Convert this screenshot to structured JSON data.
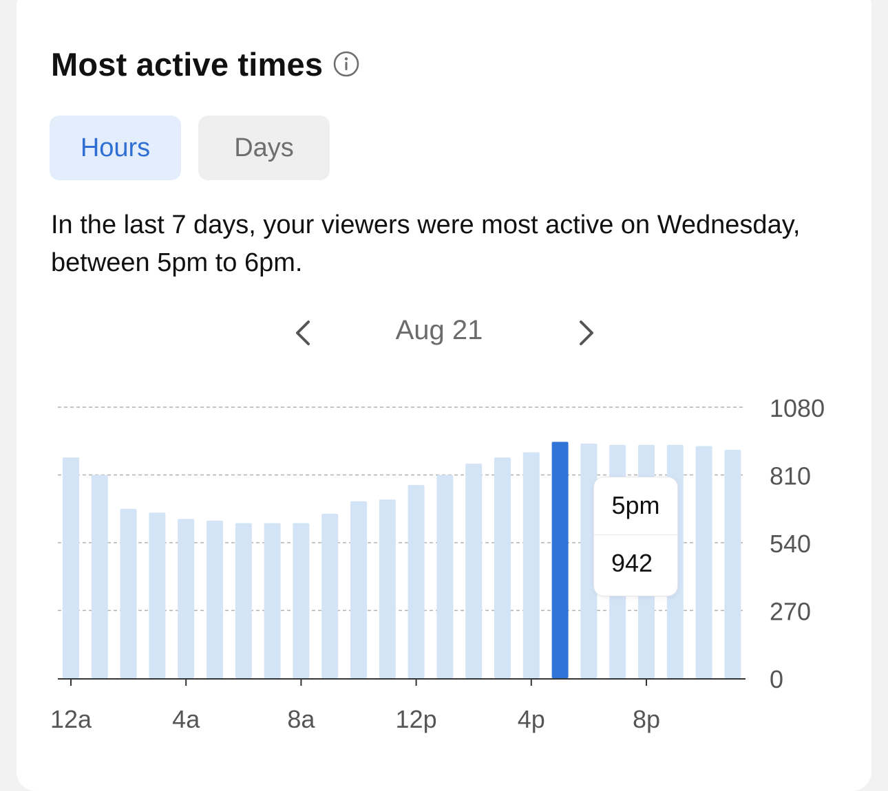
{
  "header": {
    "title": "Most active times",
    "info_icon": "info-icon"
  },
  "tabs": [
    {
      "label": "Hours",
      "selected": true
    },
    {
      "label": "Days",
      "selected": false
    }
  ],
  "description": "In the last 7 days, your viewers were most active on Wednesday, between 5pm to 6pm.",
  "date_nav": {
    "label": "Aug 21",
    "prev_icon": "chevron-left-icon",
    "next_icon": "chevron-right-icon"
  },
  "tooltip": {
    "hour": "5pm",
    "value": "942"
  },
  "colors": {
    "bar": "#d4e4f7",
    "bar_highlight": "#2f74d6",
    "tab_selected_bg": "#e3edfb",
    "tab_selected_text": "#2f6fd4"
  },
  "chart_data": {
    "type": "bar",
    "categories": [
      "12a",
      "1a",
      "2a",
      "3a",
      "4a",
      "5a",
      "6a",
      "7a",
      "8a",
      "9a",
      "10a",
      "11a",
      "12p",
      "1p",
      "2p",
      "3p",
      "4p",
      "5p",
      "6p",
      "7p",
      "8p",
      "9p",
      "10p",
      "11p"
    ],
    "values": [
      880,
      810,
      675,
      660,
      635,
      628,
      618,
      618,
      618,
      655,
      705,
      712,
      770,
      810,
      855,
      880,
      900,
      942,
      935,
      930,
      930,
      930,
      925,
      910
    ],
    "highlight_index": 17,
    "x_tick_labels": [
      "12a",
      "4a",
      "8a",
      "12p",
      "4p",
      "8p"
    ],
    "x_tick_indices": [
      0,
      4,
      8,
      12,
      16,
      20
    ],
    "y_ticks": [
      0,
      270,
      540,
      810,
      1080
    ],
    "ylim": [
      0,
      1080
    ],
    "grid": true,
    "y_axis_side": "right"
  }
}
